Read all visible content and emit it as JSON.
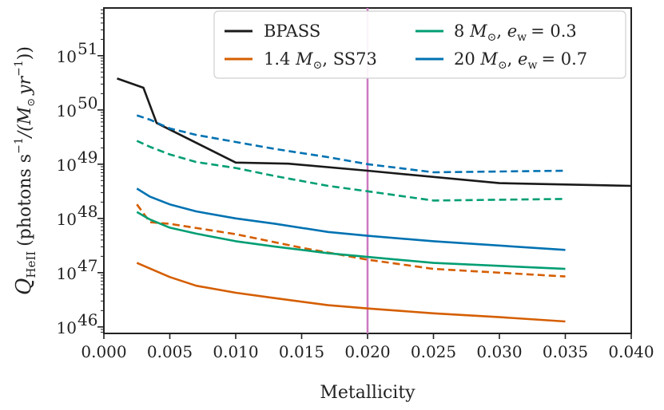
{
  "chart_data": {
    "type": "line",
    "xlabel": "Metallicity",
    "ylabel": "Q_HeII (photons s^-1/(M_⊙ yr^-1))",
    "ylabel_prefix": "Q",
    "ylabel_sub": "HeII",
    "ylabel_body": "(photons s",
    "ylabel_sup1": "−1",
    "ylabel_mid": "/(M",
    "ylabel_sun": "⊙",
    "ylabel_end": "yr",
    "ylabel_sup2": "−1",
    "ylabel_close": "))",
    "xlim": [
      0.0,
      0.04
    ],
    "ylog_lim": [
      45.88,
      51.88
    ],
    "x_ticks": [
      0.0,
      0.005,
      0.01,
      0.015,
      0.02,
      0.025,
      0.03,
      0.035,
      0.04
    ],
    "x_tick_labels": [
      "0.000",
      "0.005",
      "0.010",
      "0.015",
      "0.020",
      "0.025",
      "0.030",
      "0.035",
      "0.040"
    ],
    "y_ticks": [
      46,
      47,
      48,
      49,
      50,
      51
    ],
    "y_tick_labels": [
      "10",
      "10",
      "10",
      "10",
      "10",
      "10"
    ],
    "y_tick_exponents": [
      "46",
      "47",
      "48",
      "49",
      "50",
      "51"
    ],
    "vline_x": 0.02,
    "vline_color": "#cc79c0",
    "legend_location": "top-right",
    "series": [
      {
        "name": "BPASS",
        "color": "#1a1a1a",
        "style": "solid",
        "x": [
          0.001,
          0.003,
          0.004,
          0.01,
          0.014,
          0.02,
          0.03,
          0.04
        ],
        "log_y": [
          50.58,
          50.41,
          49.76,
          49.03,
          49.01,
          48.88,
          48.65,
          48.6
        ]
      },
      {
        "name": "1.4 M⊙, SS73",
        "color": "#d55e00",
        "style": "solid",
        "x": [
          0.0025,
          0.005,
          0.007,
          0.01,
          0.013,
          0.017,
          0.02,
          0.025,
          0.03,
          0.035
        ],
        "log_y": [
          47.18,
          46.92,
          46.76,
          46.63,
          46.53,
          46.4,
          46.34,
          46.25,
          46.18,
          46.1
        ]
      },
      {
        "name": "1.4 M⊙, SS73 (dashed)",
        "color": "#d55e00",
        "style": "dashed",
        "x": [
          0.0025,
          0.0035,
          0.005,
          0.01,
          0.015,
          0.02,
          0.025,
          0.035
        ],
        "log_y": [
          48.26,
          47.93,
          47.9,
          47.71,
          47.46,
          47.24,
          47.07,
          46.93
        ]
      },
      {
        "name": "8 M⊙, e_w = 0.3",
        "color": "#009e73",
        "style": "solid",
        "x": [
          0.0025,
          0.0035,
          0.005,
          0.007,
          0.01,
          0.013,
          0.017,
          0.02,
          0.025,
          0.035
        ],
        "log_y": [
          48.12,
          47.98,
          47.83,
          47.72,
          47.58,
          47.48,
          47.36,
          47.29,
          47.18,
          47.07
        ]
      },
      {
        "name": "8 M⊙, e_w = 0.3 (dashed)",
        "color": "#009e73",
        "style": "dashed",
        "x": [
          0.0025,
          0.0035,
          0.005,
          0.007,
          0.01,
          0.013,
          0.017,
          0.02,
          0.025,
          0.035
        ],
        "log_y": [
          49.43,
          49.32,
          49.18,
          49.04,
          48.93,
          48.78,
          48.6,
          48.5,
          48.33,
          48.36
        ]
      },
      {
        "name": "20 M⊙, e_w = 0.7",
        "color": "#0072b2",
        "style": "solid",
        "x": [
          0.0025,
          0.0035,
          0.005,
          0.007,
          0.01,
          0.013,
          0.017,
          0.02,
          0.025,
          0.035
        ],
        "log_y": [
          48.55,
          48.4,
          48.26,
          48.13,
          48.0,
          47.9,
          47.75,
          47.68,
          47.58,
          47.42
        ]
      },
      {
        "name": "20 M⊙, e_w = 0.7 (dashed)",
        "color": "#0072b2",
        "style": "dashed",
        "x": [
          0.0025,
          0.0035,
          0.005,
          0.007,
          0.01,
          0.013,
          0.017,
          0.02,
          0.025,
          0.035
        ],
        "log_y": [
          49.9,
          49.82,
          49.66,
          49.54,
          49.41,
          49.28,
          49.13,
          49.0,
          48.85,
          48.88
        ]
      }
    ],
    "legend": [
      {
        "label": "BPASS",
        "color": "#1a1a1a"
      },
      {
        "label": "1.4",
        "math": "M",
        "sun": "⊙",
        "suffix": ", SS73",
        "color": "#d55e00"
      },
      {
        "label": "8",
        "math": "M",
        "sun": "⊙",
        "suffix": ",",
        "ew": "e",
        "ew_sub": "w",
        "ew_val": "= 0.3",
        "color": "#009e73"
      },
      {
        "label": "20",
        "math": "M",
        "sun": "⊙",
        "suffix": ",",
        "ew": "e",
        "ew_sub": "w",
        "ew_val": "= 0.7",
        "color": "#0072b2"
      }
    ]
  }
}
